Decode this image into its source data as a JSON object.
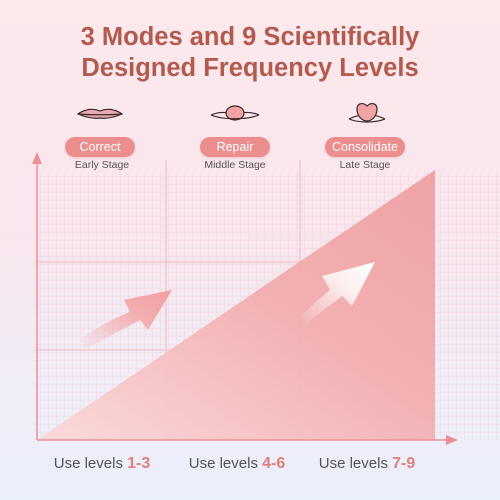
{
  "title": {
    "line1": "3 Modes and 9 Scientifically",
    "line2": "Designed Frequency Levels"
  },
  "modes": [
    {
      "label": "Correct",
      "stage": "Early Stage",
      "icon": "lips-closed-icon"
    },
    {
      "label": "Repair",
      "stage": "Middle Stage",
      "icon": "lips-parted-icon"
    },
    {
      "label": "Consolidate",
      "stage": "Late Stage",
      "icon": "lips-open-icon"
    }
  ],
  "levels": [
    {
      "prefix": "Use levels ",
      "range": "1-3"
    },
    {
      "prefix": "Use levels ",
      "range": "4-6"
    },
    {
      "prefix": "Use levels ",
      "range": "7-9"
    }
  ],
  "colors": {
    "title": "#b35a4e",
    "pill": "#ec8e8e",
    "accent": "#e07f78",
    "fill": "#f2a9a9"
  }
}
